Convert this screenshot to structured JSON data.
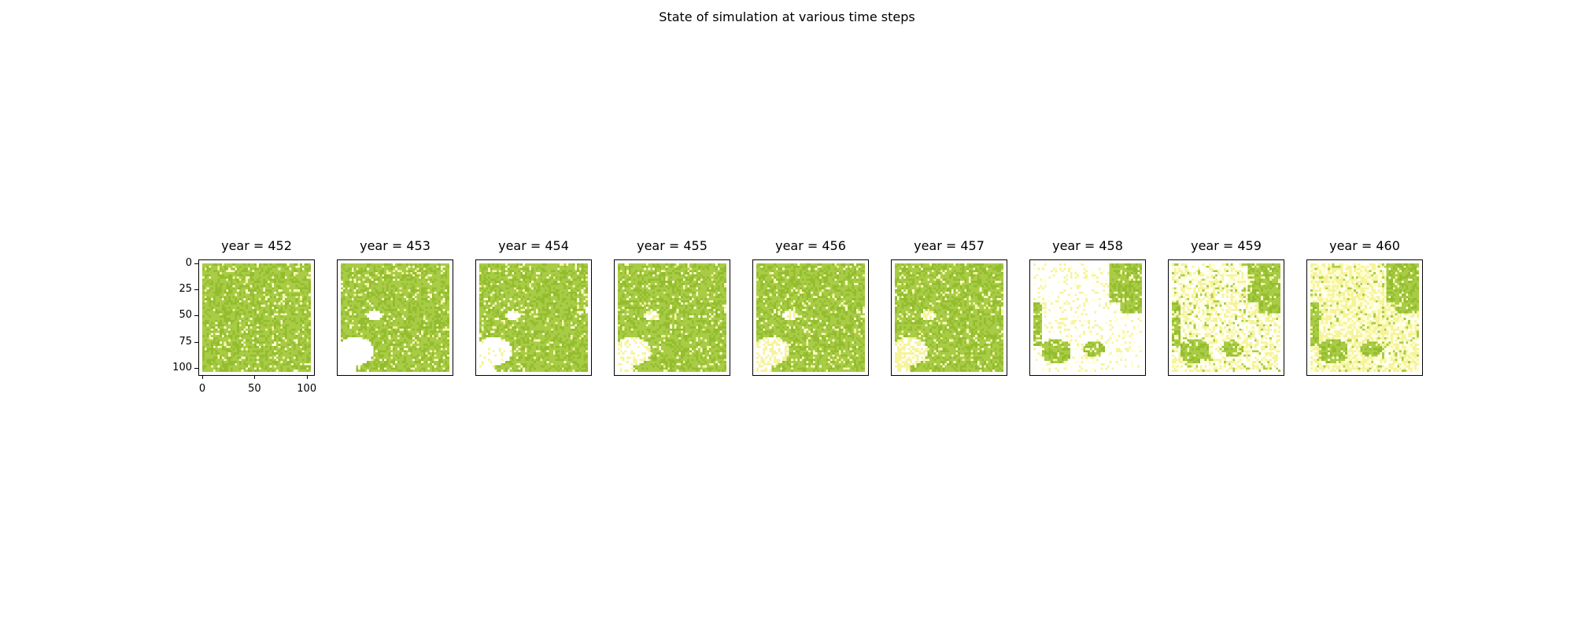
{
  "chart_data": {
    "type": "heatmap",
    "title": "State of simulation at various time steps",
    "panel_titles": [
      "year = 452",
      "year = 453",
      "year = 454",
      "year = 455",
      "year = 456",
      "year = 457",
      "year = 458",
      "year = 459",
      "year = 460"
    ],
    "grid_size": [
      100,
      100
    ],
    "yticks": [
      "0",
      "25",
      "50",
      "75",
      "100"
    ],
    "ytick_values": [
      0,
      25,
      50,
      75,
      100
    ],
    "xticks": [
      "0",
      "50",
      "100"
    ],
    "xtick_values": [
      0,
      50,
      100
    ],
    "axis_range": [
      -3,
      107
    ],
    "xlim": [
      -3,
      107
    ],
    "ylim": [
      107,
      -3
    ],
    "ticks_on_panel": "year = 452",
    "colors": {
      "vegetation": "#a8cc45",
      "vegetation_dark": "#93bd2f",
      "burnt": "#ffffff",
      "regrowth": "#f6f39b",
      "sparse": "#ffffd0"
    },
    "panels": [
      {
        "year": 452,
        "burnt_fraction": 0.0,
        "regrowth_fraction": 0.02
      },
      {
        "year": 453,
        "burnt_fraction": 0.06,
        "regrowth_fraction": 0.02
      },
      {
        "year": 454,
        "burnt_fraction": 0.06,
        "regrowth_fraction": 0.03
      },
      {
        "year": 455,
        "burnt_fraction": 0.05,
        "regrowth_fraction": 0.05
      },
      {
        "year": 456,
        "burnt_fraction": 0.05,
        "regrowth_fraction": 0.06
      },
      {
        "year": 457,
        "burnt_fraction": 0.05,
        "regrowth_fraction": 0.06
      },
      {
        "year": 458,
        "burnt_fraction": 0.55,
        "regrowth_fraction": 0.1
      },
      {
        "year": 459,
        "burnt_fraction": 0.5,
        "regrowth_fraction": 0.25
      },
      {
        "year": 460,
        "burnt_fraction": 0.4,
        "regrowth_fraction": 0.35
      }
    ]
  }
}
